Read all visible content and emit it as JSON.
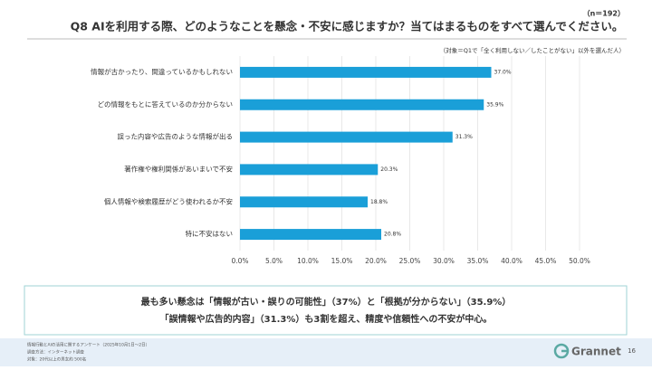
{
  "chart_data": {
    "type": "hbar",
    "title": "Q8 AIを利用する際、どのようなことを懸念・不安に感じますか？当てはまるものをすべて選んでください。",
    "sample_size": "（n＝192）",
    "subtitle": "（対象＝Q1で「全く利用しない／したことがない」以外を選んだ人）",
    "categories": [
      "情報が古かったり、間違っているかもしれない",
      "どの情報をもとに答えているのか分からない",
      "誤った内容や広告のような情報が出る",
      "著作権や権利関係があいまいで不安",
      "個人情報や検索履歴がどう使われるか不安",
      "特に不安はない"
    ],
    "values": [
      37.0,
      35.9,
      31.3,
      20.3,
      18.8,
      20.8
    ],
    "value_labels": [
      "37.0%",
      "35.9%",
      "31.3%",
      "20.3%",
      "18.8%",
      "20.8%"
    ],
    "color": "#1a9fd8",
    "xlim": [
      0,
      50
    ],
    "xticks": [
      {
        "value": 0,
        "label": "0.0%"
      },
      {
        "value": 5,
        "label": "5.0%"
      },
      {
        "value": 10,
        "label": "10.0%"
      },
      {
        "value": 15,
        "label": "15.0%"
      },
      {
        "value": 20,
        "label": "20.0%"
      },
      {
        "value": 25,
        "label": "25.0%"
      },
      {
        "value": 30,
        "label": "30.0%"
      },
      {
        "value": 35,
        "label": "35.0%"
      },
      {
        "value": 40,
        "label": "40.0%"
      },
      {
        "value": 45,
        "label": "45.0%"
      },
      {
        "value": 50,
        "label": "50.0%"
      }
    ],
    "grid": true
  },
  "summary": [
    "最も多い懸念は「情報が古い・誤りの可能性」（37%）と「根拠が分からない」（35.9%）",
    "「誤情報や広告的内容」（31.3%）も3割を超え、精度や信頼性への不安が中心。"
  ],
  "footer": [
    "情報行動とAIの活用に関するアンケート（2025年10月1日〜2日）",
    "調査方法：インターネット調査",
    "対象：20代以上の男女約 500名"
  ],
  "logo": "Grannet",
  "page_number": "16"
}
